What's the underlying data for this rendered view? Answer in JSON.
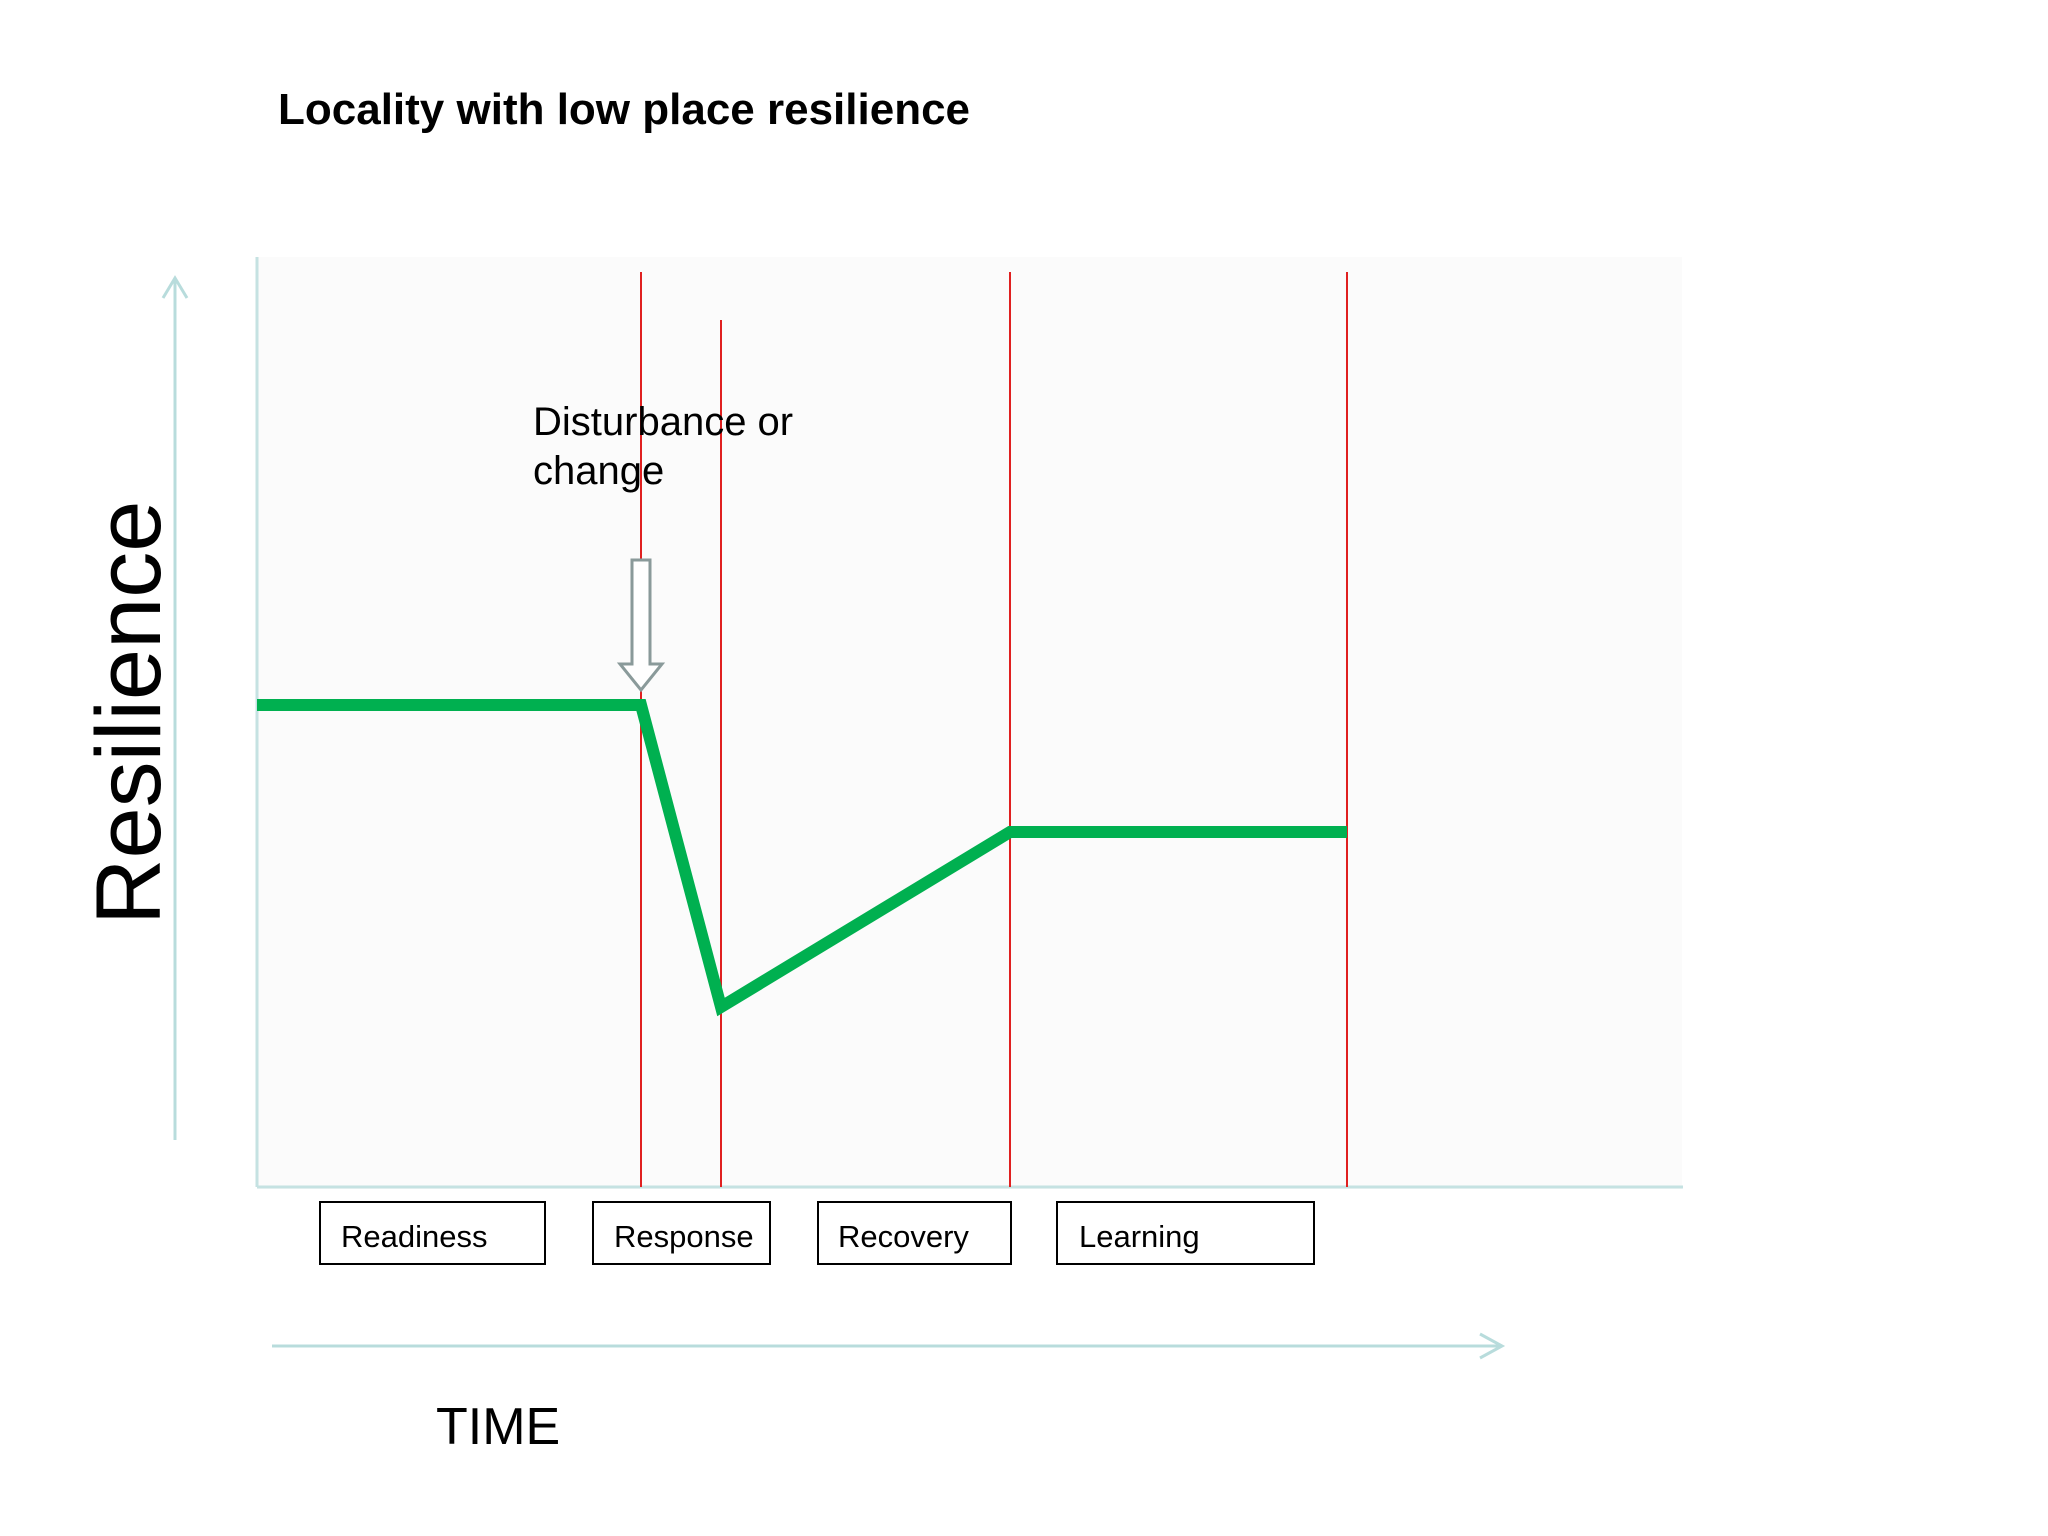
{
  "title": "Locality with low place resilience",
  "y_axis_label": "Resilience",
  "x_axis_label": "TIME",
  "annotation": {
    "line1": "Disturbance or",
    "line2": "change"
  },
  "phases": [
    {
      "label": "Readiness"
    },
    {
      "label": "Response"
    },
    {
      "label": "Recovery"
    },
    {
      "label": "Learning"
    }
  ],
  "colors": {
    "curve": "#00b050",
    "phase_line": "#e02020",
    "axis": "#b8dcdc",
    "arrow_outline": "#8a9a9a"
  }
}
